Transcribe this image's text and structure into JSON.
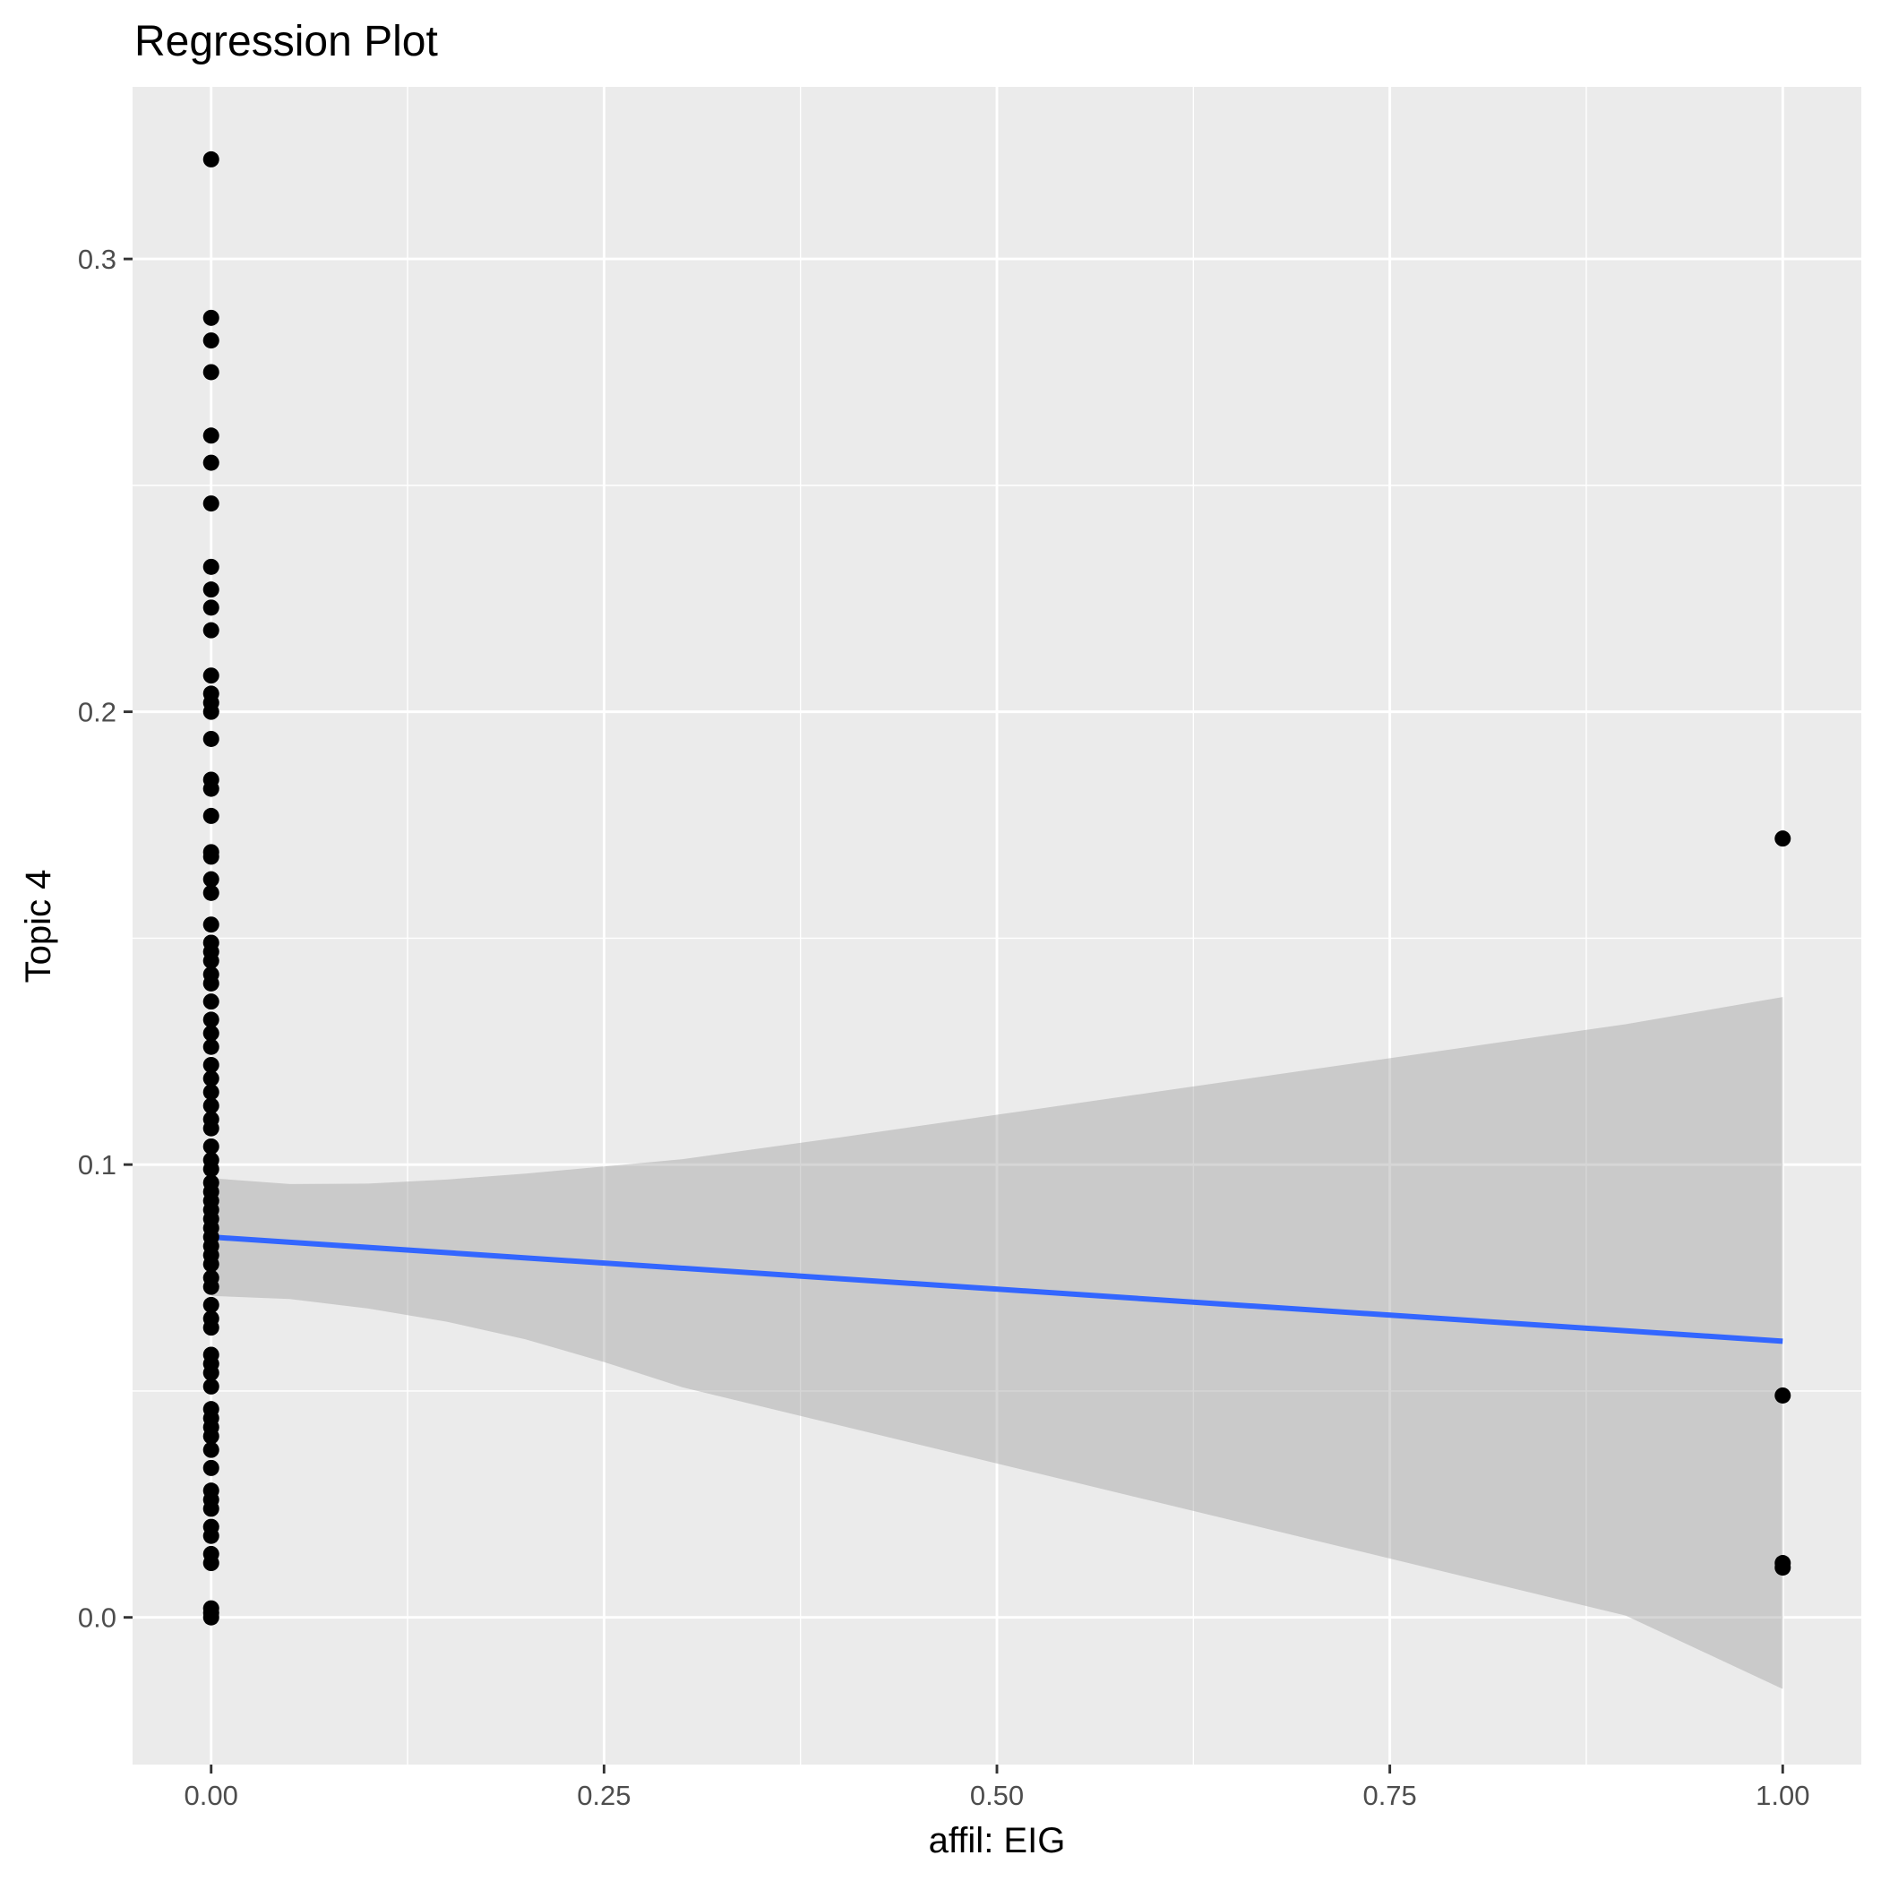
{
  "chart_data": {
    "type": "scatter",
    "title": "Regression Plot",
    "xlabel": "affil: EIG",
    "ylabel": "Topic 4",
    "xlim": [
      -0.05,
      1.05
    ],
    "ylim": [
      -0.0325,
      0.338
    ],
    "x_ticks": [
      {
        "value": 0.0,
        "label": "0.00"
      },
      {
        "value": 0.25,
        "label": "0.25"
      },
      {
        "value": 0.5,
        "label": "0.50"
      },
      {
        "value": 0.75,
        "label": "0.75"
      },
      {
        "value": 1.0,
        "label": "1.00"
      }
    ],
    "y_ticks": [
      {
        "value": 0.0,
        "label": "0.0"
      },
      {
        "value": 0.1,
        "label": "0.1"
      },
      {
        "value": 0.2,
        "label": "0.2"
      },
      {
        "value": 0.3,
        "label": "0.3"
      }
    ],
    "grid": true,
    "points": {
      "x0": [
        0.322,
        0.287,
        0.282,
        0.275,
        0.261,
        0.255,
        0.246,
        0.232,
        0.227,
        0.223,
        0.218,
        0.208,
        0.204,
        0.202,
        0.2,
        0.194,
        0.185,
        0.183,
        0.177,
        0.169,
        0.168,
        0.163,
        0.16,
        0.153,
        0.149,
        0.147,
        0.145,
        0.142,
        0.14,
        0.136,
        0.132,
        0.129,
        0.126,
        0.122,
        0.119,
        0.116,
        0.113,
        0.11,
        0.108,
        0.104,
        0.101,
        0.099,
        0.096,
        0.094,
        0.092,
        0.09,
        0.088,
        0.086,
        0.084,
        0.082,
        0.08,
        0.078,
        0.075,
        0.073,
        0.069,
        0.066,
        0.064,
        0.058,
        0.056,
        0.054,
        0.051,
        0.046,
        0.044,
        0.042,
        0.04,
        0.037,
        0.033,
        0.028,
        0.026,
        0.024,
        0.02,
        0.018,
        0.014,
        0.012,
        0.002,
        0.001,
        0.0
      ],
      "x1": [
        0.172,
        0.049,
        0.012,
        0.011
      ]
    },
    "fit": {
      "x": [
        0.0,
        1.0
      ],
      "y": [
        0.084,
        0.061
      ]
    },
    "ribbon": {
      "x": [
        0.0,
        0.05,
        0.1,
        0.15,
        0.2,
        0.25,
        0.3,
        0.4,
        0.5,
        0.6,
        0.7,
        0.8,
        0.9,
        1.0
      ],
      "upper": [
        0.097,
        0.0957,
        0.0958,
        0.0967,
        0.098,
        0.0996,
        0.1012,
        0.106,
        0.111,
        0.116,
        0.121,
        0.126,
        0.131,
        0.137
      ],
      "lower": [
        0.071,
        0.0703,
        0.0682,
        0.0653,
        0.0614,
        0.0564,
        0.0508,
        0.0424,
        0.034,
        0.0256,
        0.0172,
        0.0088,
        0.0004,
        -0.0158
      ]
    }
  }
}
